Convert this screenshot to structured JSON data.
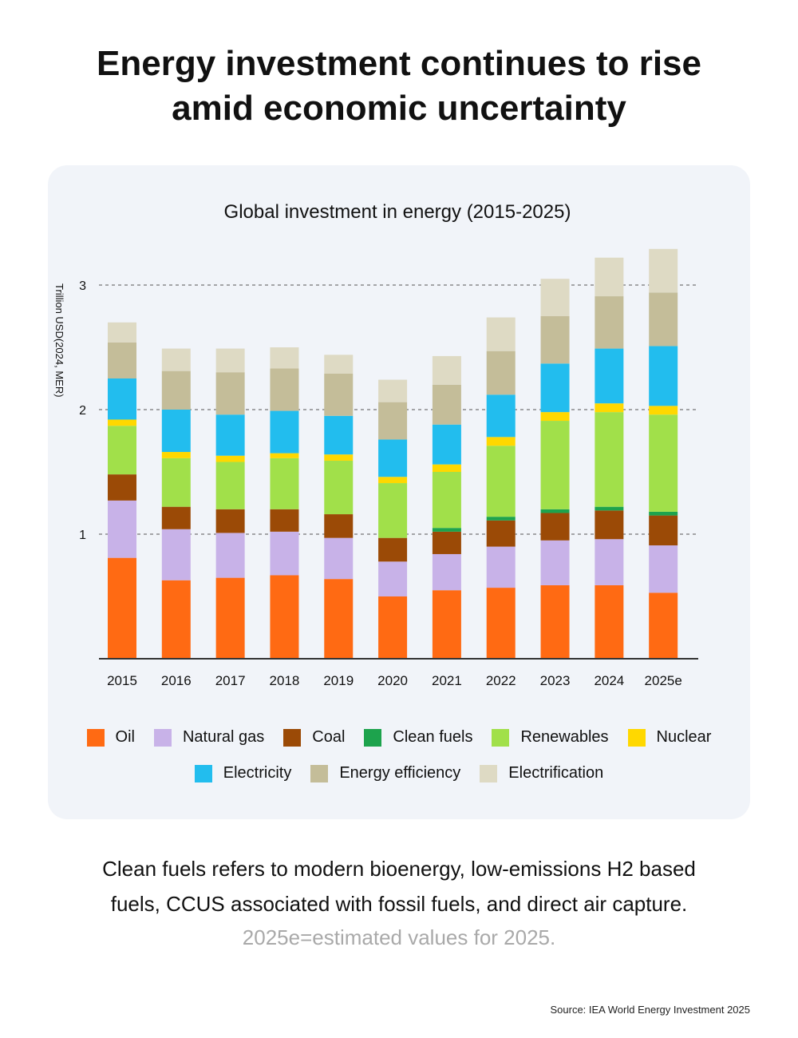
{
  "headline": {
    "line1": "Energy investment continues to rise",
    "line2": "amid economic uncertainty"
  },
  "chart_data": {
    "type": "bar",
    "stacked": true,
    "title": "Global investment in energy (2015-2025)",
    "xlabel": "",
    "ylabel": "Trillion USD(2024, MER)",
    "ylim": [
      0,
      3.3
    ],
    "yticks": [
      1,
      2,
      3
    ],
    "grid": "dashed horizontal",
    "legend_position": "bottom",
    "categories": [
      "2015",
      "2016",
      "2017",
      "2018",
      "2019",
      "2020",
      "2021",
      "2022",
      "2023",
      "2024",
      "2025e"
    ],
    "series": [
      {
        "name": "Oil",
        "color": "#ff6a13",
        "values": [
          0.81,
          0.63,
          0.65,
          0.67,
          0.64,
          0.5,
          0.55,
          0.57,
          0.59,
          0.59,
          0.53
        ]
      },
      {
        "name": "Natural gas",
        "color": "#c8b2e8",
        "values": [
          0.46,
          0.41,
          0.36,
          0.35,
          0.33,
          0.28,
          0.29,
          0.33,
          0.36,
          0.37,
          0.38
        ]
      },
      {
        "name": "Coal",
        "color": "#9b4a06",
        "values": [
          0.21,
          0.18,
          0.19,
          0.18,
          0.19,
          0.19,
          0.18,
          0.21,
          0.22,
          0.23,
          0.24
        ]
      },
      {
        "name": "Clean fuels",
        "color": "#1da34d",
        "values": [
          0.0,
          0.0,
          0.0,
          0.0,
          0.0,
          0.0,
          0.03,
          0.03,
          0.03,
          0.03,
          0.03
        ]
      },
      {
        "name": "Renewables",
        "color": "#a1e04a",
        "values": [
          0.39,
          0.39,
          0.38,
          0.41,
          0.43,
          0.44,
          0.45,
          0.57,
          0.71,
          0.76,
          0.78
        ]
      },
      {
        "name": "Nuclear",
        "color": "#ffd800",
        "values": [
          0.05,
          0.05,
          0.05,
          0.04,
          0.05,
          0.05,
          0.06,
          0.07,
          0.07,
          0.07,
          0.07
        ]
      },
      {
        "name": "Electricity",
        "color": "#22bdee",
        "values": [
          0.33,
          0.34,
          0.33,
          0.34,
          0.31,
          0.3,
          0.32,
          0.34,
          0.39,
          0.44,
          0.48
        ]
      },
      {
        "name": "Energy efficiency",
        "color": "#c4bd99",
        "values": [
          0.29,
          0.31,
          0.34,
          0.34,
          0.34,
          0.3,
          0.32,
          0.35,
          0.38,
          0.42,
          0.43
        ]
      },
      {
        "name": "Electrification",
        "color": "#dedac4",
        "values": [
          0.16,
          0.18,
          0.19,
          0.17,
          0.15,
          0.18,
          0.23,
          0.27,
          0.3,
          0.31,
          0.35
        ]
      }
    ]
  },
  "footnote": {
    "line1": "Clean fuels refers to modern bioenergy, low-emissions H2 based",
    "line2": "fuels, CCUS associated with fossil fuels, and direct air capture.",
    "line3": "2025e=estimated values for 2025."
  },
  "source": "Source: IEA World Energy Investment 2025"
}
